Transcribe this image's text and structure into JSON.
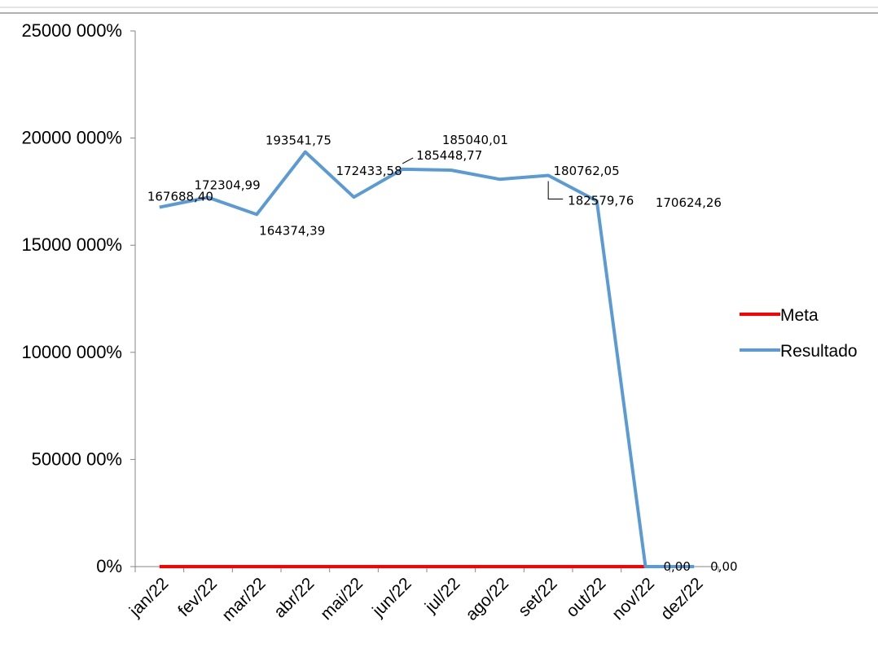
{
  "chart_data": {
    "type": "line",
    "categories": [
      "jan/22",
      "fev/22",
      "mar/22",
      "abr/22",
      "mai/22",
      "jun/22",
      "jul/22",
      "ago/22",
      "set/22",
      "out/22",
      "nov/22",
      "dez/22"
    ],
    "y_tick_labels": [
      "0%",
      "50000 00%",
      "10000 000%",
      "15000 000%",
      "20000 000%",
      "25000 000%"
    ],
    "ylim": [
      0,
      250000
    ],
    "ytick_step": 50000,
    "series": [
      {
        "name": "Meta",
        "color": "#ff0000",
        "values": [
          0,
          0,
          0,
          0,
          0,
          0,
          0,
          0,
          0,
          0,
          0,
          null
        ]
      },
      {
        "name": "Resultado",
        "color": "#5b9bd5",
        "values": [
          167688.4,
          172304.99,
          164374.39,
          193541.75,
          172433.58,
          185448.77,
          185040.01,
          180762.05,
          182579.76,
          170624.26,
          0,
          0
        ],
        "data_labels": [
          "167688,40",
          "172304,99",
          "164374,39",
          "193541,75",
          "172433,58",
          "185448,77",
          "185040,01",
          "180762,05",
          "182579,76",
          "170624,26",
          "0,00",
          "0,00"
        ]
      }
    ],
    "legend_position": "right",
    "grid": false
  }
}
